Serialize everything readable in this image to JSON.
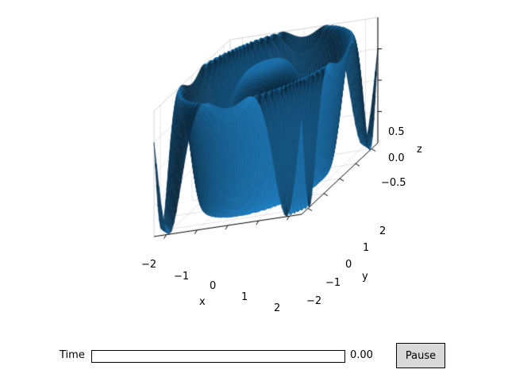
{
  "chart_data": {
    "type": "surface",
    "function": "z = cos(r^2 + t), r = sqrt(x^2 + y^2)",
    "x_range": [
      -2.4,
      2.4
    ],
    "y_range": [
      -2.4,
      2.4
    ],
    "zlim": [
      -1,
      1
    ],
    "xlabel": "x",
    "ylabel": "y",
    "zlabel": "z",
    "x_ticks": [
      "−2",
      "−1",
      "0",
      "1",
      "2"
    ],
    "y_ticks": [
      "−2",
      "−1",
      "0",
      "1",
      "2"
    ],
    "z_ticks": [
      "0.5",
      "0.0",
      "−0.5"
    ],
    "surface_color": "#1f77b4",
    "grid": true
  },
  "controls": {
    "slider_label": "Time",
    "slider_value": "0.00",
    "slider_fraction": 0,
    "pause_label": "Pause"
  }
}
